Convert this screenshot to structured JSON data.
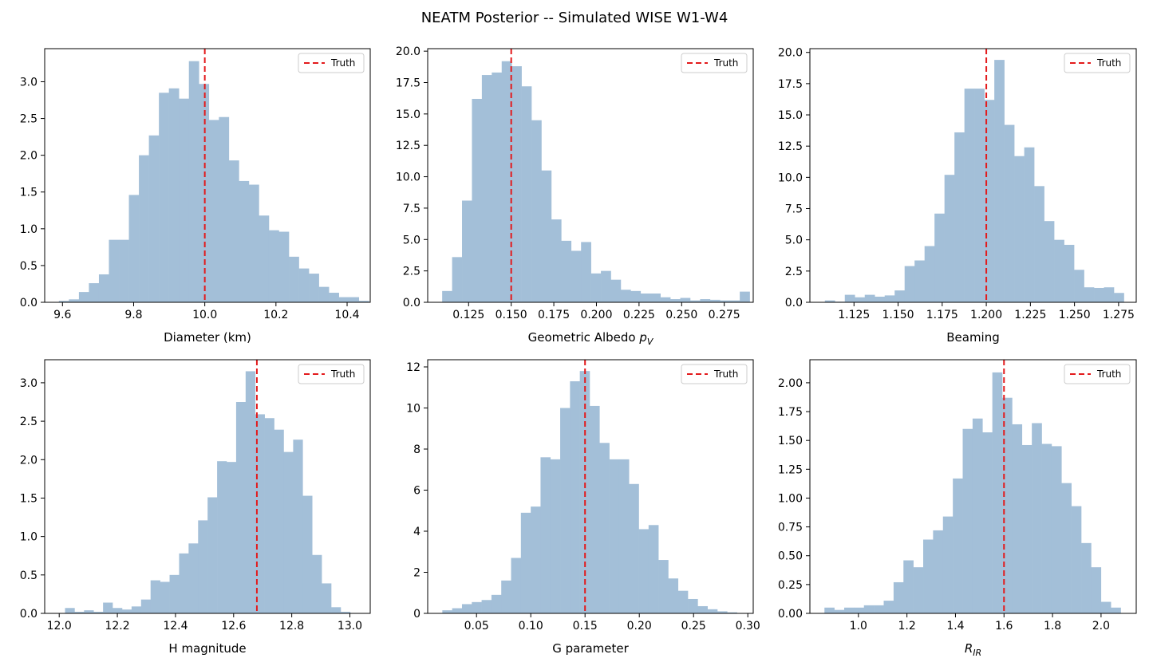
{
  "figure": {
    "suptitle": "NEATM Posterior -- Simulated WISE W1-W4"
  },
  "colors": {
    "bar": "#a3bfd8",
    "truth": "#e31a1c",
    "axis": "#000000"
  },
  "chart_data": [
    {
      "type": "bar",
      "xlabel": "Diameter (km)",
      "xlim": [
        9.55,
        10.465
      ],
      "ylim": [
        0,
        3.45
      ],
      "xticks": [
        {
          "v": 9.6,
          "label": "9.6"
        },
        {
          "v": 9.8,
          "label": "9.8"
        },
        {
          "v": 10.0,
          "label": "10.0"
        },
        {
          "v": 10.2,
          "label": "10.2"
        },
        {
          "v": 10.4,
          "label": "10.4"
        }
      ],
      "yticks": [
        {
          "v": 0,
          "label": "0.0"
        },
        {
          "v": 0.5,
          "label": "0.5"
        },
        {
          "v": 1.0,
          "label": "1.0"
        },
        {
          "v": 1.5,
          "label": "1.5"
        },
        {
          "v": 2.0,
          "label": "2.0"
        },
        {
          "v": 2.5,
          "label": "2.5"
        },
        {
          "v": 3.0,
          "label": "3.0"
        }
      ],
      "bin_start": 9.59,
      "bin_width": 0.0281,
      "values": [
        0.02,
        0.04,
        0.14,
        0.26,
        0.38,
        0.85,
        0.85,
        1.46,
        2.0,
        2.27,
        2.85,
        2.91,
        2.77,
        3.28,
        2.97,
        2.48,
        2.52,
        1.93,
        1.65,
        1.6,
        1.18,
        0.98,
        0.96,
        0.62,
        0.46,
        0.39,
        0.21,
        0.13,
        0.07,
        0.07,
        0.02
      ],
      "truth": 10.0,
      "legend": {
        "label": "Truth",
        "loc": "upper-right"
      }
    },
    {
      "type": "bar",
      "xlabel": "Geometric Albedo p_V",
      "xlabel_main": "Geometric Albedo ",
      "xlabel_italic": "p",
      "xlabel_sub": "V",
      "xlim": [
        0.101,
        0.292
      ],
      "ylim": [
        0,
        20.2
      ],
      "xticks": [
        {
          "v": 0.125,
          "label": "0.125"
        },
        {
          "v": 0.15,
          "label": "0.150"
        },
        {
          "v": 0.175,
          "label": "0.175"
        },
        {
          "v": 0.2,
          "label": "0.200"
        },
        {
          "v": 0.225,
          "label": "0.225"
        },
        {
          "v": 0.25,
          "label": "0.250"
        },
        {
          "v": 0.275,
          "label": "0.275"
        }
      ],
      "yticks": [
        {
          "v": 0,
          "label": "0.0"
        },
        {
          "v": 2.5,
          "label": "2.5"
        },
        {
          "v": 5,
          "label": "5.0"
        },
        {
          "v": 7.5,
          "label": "7.5"
        },
        {
          "v": 10,
          "label": "10.0"
        },
        {
          "v": 12.5,
          "label": "12.5"
        },
        {
          "v": 15,
          "label": "15.0"
        },
        {
          "v": 17.5,
          "label": "17.5"
        },
        {
          "v": 20,
          "label": "20.0"
        }
      ],
      "bin_start": 0.1095,
      "bin_width": 0.00582,
      "values": [
        0.9,
        3.6,
        8.1,
        16.2,
        18.1,
        18.3,
        19.2,
        18.8,
        17.2,
        14.5,
        10.5,
        6.6,
        4.9,
        4.1,
        4.8,
        2.3,
        2.5,
        1.8,
        1.0,
        0.9,
        0.7,
        0.7,
        0.4,
        0.25,
        0.35,
        0.15,
        0.25,
        0.2,
        0.15,
        0.15,
        0.85
      ],
      "truth": 0.15,
      "legend": {
        "label": "Truth",
        "loc": "upper-right"
      }
    },
    {
      "type": "bar",
      "xlabel": "Beaming",
      "xlim": [
        1.1,
        1.285
      ],
      "ylim": [
        0,
        20.3
      ],
      "xticks": [
        {
          "v": 1.125,
          "label": "1.125"
        },
        {
          "v": 1.15,
          "label": "1.150"
        },
        {
          "v": 1.175,
          "label": "1.175"
        },
        {
          "v": 1.2,
          "label": "1.200"
        },
        {
          "v": 1.225,
          "label": "1.225"
        },
        {
          "v": 1.25,
          "label": "1.250"
        },
        {
          "v": 1.275,
          "label": "1.275"
        }
      ],
      "yticks": [
        {
          "v": 0,
          "label": "0.0"
        },
        {
          "v": 2.5,
          "label": "2.5"
        },
        {
          "v": 5,
          "label": "5.0"
        },
        {
          "v": 7.5,
          "label": "7.5"
        },
        {
          "v": 10,
          "label": "10.0"
        },
        {
          "v": 12.5,
          "label": "12.5"
        },
        {
          "v": 15,
          "label": "15.0"
        },
        {
          "v": 17.5,
          "label": "17.5"
        },
        {
          "v": 20,
          "label": "20.0"
        }
      ],
      "bin_start": 1.1085,
      "bin_width": 0.00565,
      "values": [
        0.15,
        0.05,
        0.6,
        0.4,
        0.6,
        0.45,
        0.55,
        0.95,
        2.9,
        3.35,
        4.5,
        7.1,
        10.2,
        13.6,
        17.1,
        17.1,
        16.2,
        19.4,
        14.2,
        11.7,
        12.4,
        9.3,
        6.5,
        5.0,
        4.6,
        2.6,
        1.2,
        1.15,
        1.2,
        0.75
      ],
      "truth": 1.2,
      "legend": {
        "label": "Truth",
        "loc": "upper-right"
      }
    },
    {
      "type": "bar",
      "xlabel": "H magnitude",
      "xlim": [
        11.95,
        13.07
      ],
      "ylim": [
        0,
        3.3
      ],
      "xticks": [
        {
          "v": 12.0,
          "label": "12.0"
        },
        {
          "v": 12.2,
          "label": "12.2"
        },
        {
          "v": 12.4,
          "label": "12.4"
        },
        {
          "v": 12.6,
          "label": "12.6"
        },
        {
          "v": 12.8,
          "label": "12.8"
        },
        {
          "v": 13.0,
          "label": "13.0"
        }
      ],
      "yticks": [
        {
          "v": 0,
          "label": "0.0"
        },
        {
          "v": 0.5,
          "label": "0.5"
        },
        {
          "v": 1.0,
          "label": "1.0"
        },
        {
          "v": 1.5,
          "label": "1.5"
        },
        {
          "v": 2.0,
          "label": "2.0"
        },
        {
          "v": 2.5,
          "label": "2.5"
        },
        {
          "v": 3.0,
          "label": "3.0"
        }
      ],
      "bin_start": 12.02,
      "bin_width": 0.0327,
      "values": [
        0.07,
        0.02,
        0.04,
        0.02,
        0.14,
        0.07,
        0.05,
        0.09,
        0.18,
        0.43,
        0.41,
        0.5,
        0.78,
        0.91,
        1.21,
        1.51,
        1.98,
        1.97,
        2.75,
        3.15,
        2.59,
        2.54,
        2.39,
        2.1,
        2.26,
        1.53,
        0.76,
        0.39,
        0.08,
        0.02
      ],
      "truth": 12.68,
      "legend": {
        "label": "Truth",
        "loc": "upper-right"
      }
    },
    {
      "type": "bar",
      "xlabel": "G parameter",
      "xlim": [
        0.005,
        0.305
      ],
      "ylim": [
        0,
        12.35
      ],
      "xticks": [
        {
          "v": 0.05,
          "label": "0.05"
        },
        {
          "v": 0.1,
          "label": "0.10"
        },
        {
          "v": 0.15,
          "label": "0.15"
        },
        {
          "v": 0.2,
          "label": "0.20"
        },
        {
          "v": 0.25,
          "label": "0.25"
        },
        {
          "v": 0.3,
          "label": "0.30"
        }
      ],
      "yticks": [
        {
          "v": 0,
          "label": "0"
        },
        {
          "v": 2,
          "label": "2"
        },
        {
          "v": 4,
          "label": "4"
        },
        {
          "v": 6,
          "label": "6"
        },
        {
          "v": 8,
          "label": "8"
        },
        {
          "v": 10,
          "label": "10"
        },
        {
          "v": 12,
          "label": "12"
        }
      ],
      "bin_start": 0.0185,
      "bin_width": 0.00905,
      "values": [
        0.15,
        0.25,
        0.45,
        0.55,
        0.65,
        0.9,
        1.6,
        2.7,
        4.9,
        5.2,
        7.6,
        7.5,
        10.0,
        11.3,
        11.8,
        10.1,
        8.3,
        7.5,
        7.5,
        6.3,
        4.1,
        4.3,
        2.6,
        1.7,
        1.1,
        0.7,
        0.35,
        0.2,
        0.1,
        0.05
      ],
      "truth": 0.15,
      "legend": {
        "label": "Truth",
        "loc": "upper-right"
      }
    },
    {
      "type": "bar",
      "xlabel": "R_IR",
      "xlabel_main": "",
      "xlabel_italic": "R",
      "xlabel_sub": "IR",
      "xlim": [
        0.8,
        2.145
      ],
      "ylim": [
        0,
        2.2
      ],
      "xticks": [
        {
          "v": 1.0,
          "label": "1.0"
        },
        {
          "v": 1.2,
          "label": "1.2"
        },
        {
          "v": 1.4,
          "label": "1.4"
        },
        {
          "v": 1.6,
          "label": "1.6"
        },
        {
          "v": 1.8,
          "label": "1.8"
        },
        {
          "v": 2.0,
          "label": "2.0"
        }
      ],
      "yticks": [
        {
          "v": 0,
          "label": "0.00"
        },
        {
          "v": 0.25,
          "label": "0.25"
        },
        {
          "v": 0.5,
          "label": "0.50"
        },
        {
          "v": 0.75,
          "label": "0.75"
        },
        {
          "v": 1.0,
          "label": "1.00"
        },
        {
          "v": 1.25,
          "label": "1.25"
        },
        {
          "v": 1.5,
          "label": "1.50"
        },
        {
          "v": 1.75,
          "label": "1.75"
        },
        {
          "v": 2.0,
          "label": "2.00"
        }
      ],
      "bin_start": 0.86,
      "bin_width": 0.0407,
      "values": [
        0.05,
        0.03,
        0.05,
        0.05,
        0.07,
        0.07,
        0.11,
        0.27,
        0.46,
        0.4,
        0.64,
        0.72,
        0.84,
        1.17,
        1.6,
        1.69,
        1.57,
        2.09,
        1.87,
        1.64,
        1.46,
        1.65,
        1.47,
        1.45,
        1.13,
        0.93,
        0.61,
        0.4,
        0.1,
        0.05
      ],
      "truth": 1.6,
      "legend": {
        "label": "Truth",
        "loc": "upper-right"
      }
    }
  ]
}
